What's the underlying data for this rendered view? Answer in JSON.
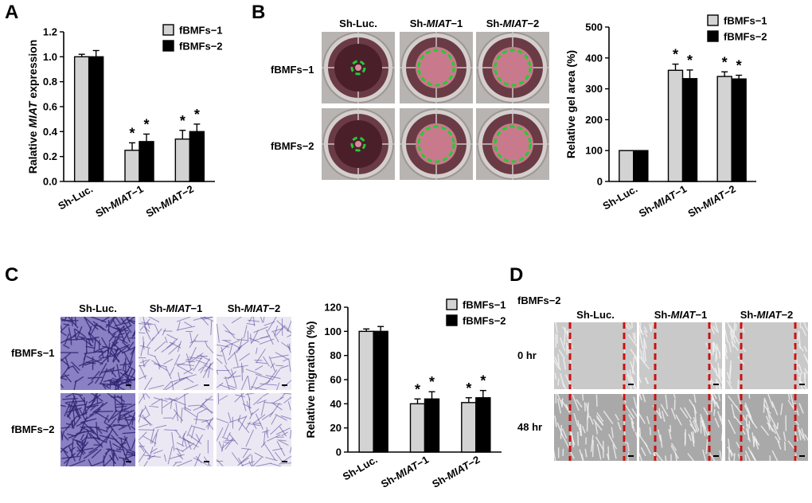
{
  "panels": {
    "A": {
      "letter": "A",
      "chart_data": {
        "type": "bar",
        "categories": [
          "Sh-Luc.",
          "Sh-MIAT−1",
          "Sh-MIAT−2"
        ],
        "category_parts": [
          [
            "Sh-Luc.",
            ""
          ],
          [
            "Sh-",
            "MIAT",
            "−1"
          ],
          [
            "Sh-",
            "MIAT",
            "−2"
          ]
        ],
        "series": [
          {
            "name": "fBMFs−1",
            "values": [
              1.0,
              0.25,
              0.34
            ],
            "errors": [
              0.02,
              0.06,
              0.07
            ],
            "color": "#d3d3d3"
          },
          {
            "name": "fBMFs−2",
            "values": [
              1.0,
              0.32,
              0.4
            ],
            "errors": [
              0.05,
              0.06,
              0.06
            ],
            "color": "#000000"
          }
        ],
        "significance": [
          [
            false,
            true,
            true
          ],
          [
            false,
            true,
            true
          ]
        ],
        "sig_mark": "*",
        "ylabel_parts": [
          "Ralative ",
          "MIAT",
          " expression"
        ],
        "ylim": [
          0,
          1.2
        ],
        "yticks": [
          "0.0",
          "0.2",
          "0.4",
          "0.6",
          "0.8",
          "1.0",
          "1.2"
        ],
        "legend": "top-right"
      }
    },
    "B": {
      "letter": "B",
      "image_grid": {
        "column_headers": [
          [
            "Sh-Luc.",
            ""
          ],
          [
            "Sh-",
            "MIAT",
            "−1"
          ],
          [
            "Sh-",
            "MIAT",
            "−2"
          ]
        ],
        "row_labels": [
          "fBMFs−1",
          "fBMFs−2"
        ]
      },
      "chart_data": {
        "type": "bar",
        "categories": [
          "Sh-Luc.",
          "Sh-MIAT−1",
          "Sh-MIAT−2"
        ],
        "category_parts": [
          [
            "Sh-Luc.",
            ""
          ],
          [
            "Sh-",
            "MIAT",
            "−1"
          ],
          [
            "Sh-",
            "MIAT",
            "−2"
          ]
        ],
        "series": [
          {
            "name": "fBMFs−1",
            "values": [
              100,
              360,
              340
            ],
            "errors": [
              0,
              20,
              15
            ],
            "color": "#d3d3d3"
          },
          {
            "name": "fBMFs−2",
            "values": [
              100,
              333,
              332
            ],
            "errors": [
              0,
              28,
              12
            ],
            "color": "#000000"
          }
        ],
        "significance": [
          [
            false,
            true,
            true
          ],
          [
            false,
            true,
            true
          ]
        ],
        "sig_mark": "*",
        "ylabel_parts": [
          "Relative gel area (%)"
        ],
        "ylim": [
          0,
          500
        ],
        "yticks": [
          "0",
          "100",
          "200",
          "300",
          "400",
          "500"
        ],
        "legend": "top-right"
      }
    },
    "C": {
      "letter": "C",
      "image_grid": {
        "column_headers": [
          [
            "Sh-Luc.",
            ""
          ],
          [
            "Sh-",
            "MIAT",
            "−1"
          ],
          [
            "Sh-",
            "MIAT",
            "−2"
          ]
        ],
        "row_labels": [
          "fBMFs−1",
          "fBMFs−2"
        ]
      },
      "chart_data": {
        "type": "bar",
        "categories": [
          "Sh-Luc.",
          "Sh-MIAT−1",
          "Sh-MIAT−2"
        ],
        "category_parts": [
          [
            "Sh-Luc.",
            ""
          ],
          [
            "Sh-",
            "MIAT",
            "−1"
          ],
          [
            "Sh-",
            "MIAT",
            "−2"
          ]
        ],
        "series": [
          {
            "name": "fBMFs−1",
            "values": [
              100,
              40,
              41
            ],
            "errors": [
              2,
              4,
              4
            ],
            "color": "#d3d3d3"
          },
          {
            "name": "fBMFs−2",
            "values": [
              100,
              44,
              45
            ],
            "errors": [
              4,
              6,
              6
            ],
            "color": "#000000"
          }
        ],
        "significance": [
          [
            false,
            true,
            true
          ],
          [
            false,
            true,
            true
          ]
        ],
        "sig_mark": "*",
        "ylabel_parts": [
          "Relative migration (%)"
        ],
        "ylim": [
          0,
          120
        ],
        "yticks": [
          "0",
          "20",
          "40",
          "60",
          "80",
          "100",
          "120"
        ],
        "legend": "top-right"
      }
    },
    "D": {
      "letter": "D",
      "group_label": "fBMFs−2",
      "image_grid": {
        "column_headers": [
          [
            "Sh-Luc.",
            ""
          ],
          [
            "Sh-",
            "MIAT",
            "−1"
          ],
          [
            "Sh-",
            "MIAT",
            "−2"
          ]
        ],
        "row_labels": [
          "0 hr",
          "48 hr"
        ]
      }
    }
  },
  "colors": {
    "bar_series_1": "#d3d3d3",
    "bar_series_2": "#000000",
    "gel_ring": "#22cc33",
    "scratch_line": "#cc1111",
    "crystal_violet": "#4a3f9c"
  }
}
